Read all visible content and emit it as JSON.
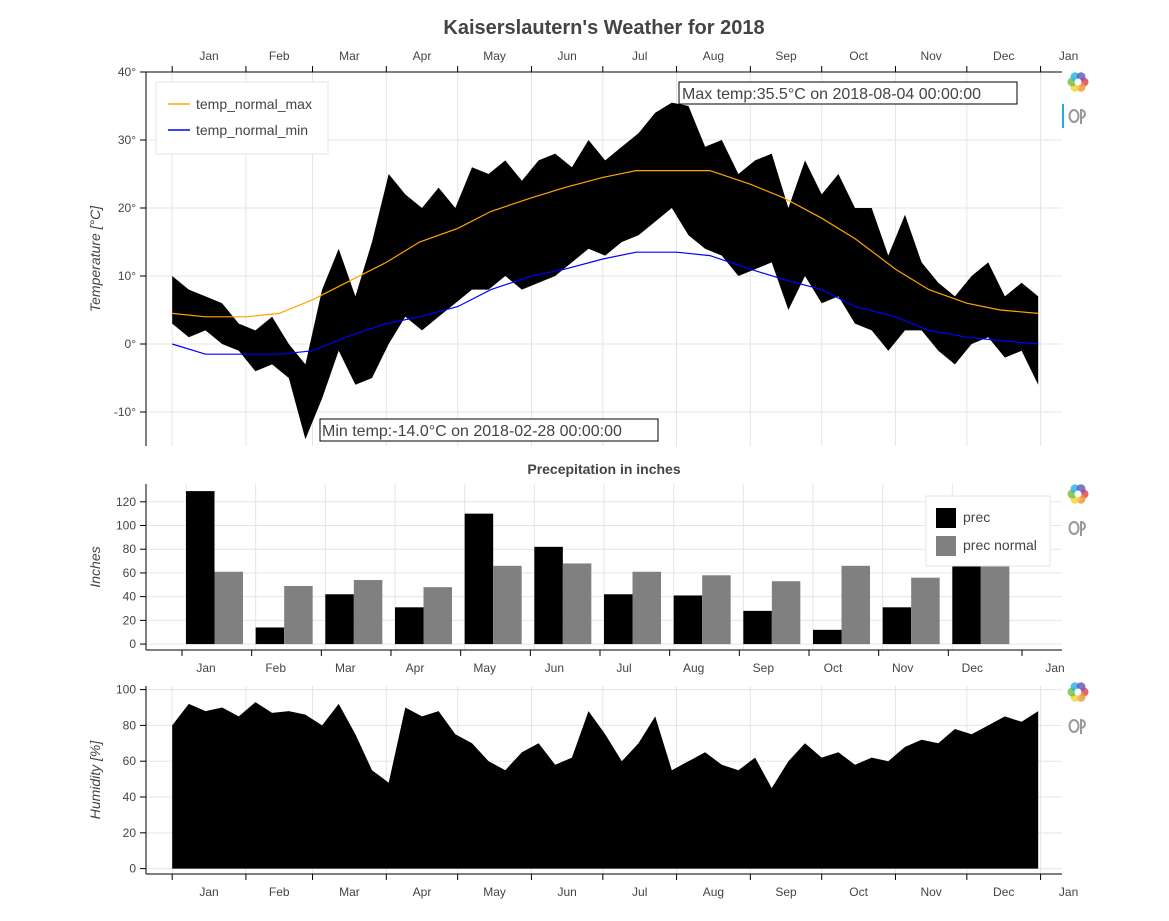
{
  "title": "Kaiserslautern's Weather for 2018",
  "months": [
    "Jan",
    "Feb",
    "Mar",
    "Apr",
    "May",
    "Jun",
    "Jul",
    "Aug",
    "Sep",
    "Oct",
    "Nov",
    "Dec",
    "Jan"
  ],
  "toolbar": {
    "logo_icon": "bokeh-logo-icon",
    "hover_icon": "hover-tool-icon"
  },
  "chart_data": [
    {
      "id": "temperature",
      "type": "line",
      "title": "",
      "ylabel": "Temperature [°C]",
      "ylim": [
        -15,
        40
      ],
      "yticks": [
        "-10°",
        "0°",
        "10°",
        "20°",
        "30°",
        "40°"
      ],
      "x_axis": "date",
      "xlim": [
        "2017-12-21",
        "2019-01-10"
      ],
      "legend": {
        "placement": "top-left",
        "entries": [
          "temp_normal_max",
          "temp_normal_min"
        ]
      },
      "annotations": [
        {
          "text": "Max temp:35.5°C on 2018-08-04 00:00:00",
          "x": "2018-08-04",
          "y": 35.5
        },
        {
          "text": "Min temp:-14.0°C on 2018-02-28 00:00:00",
          "x": "2018-02-28",
          "y": -14.0
        }
      ],
      "band": {
        "name": "daily temperature range",
        "color": "#000000",
        "dates": [
          "2018-01-01",
          "2018-01-08",
          "2018-01-15",
          "2018-01-22",
          "2018-01-29",
          "2018-02-05",
          "2018-02-12",
          "2018-02-19",
          "2018-02-26",
          "2018-03-05",
          "2018-03-12",
          "2018-03-19",
          "2018-03-26",
          "2018-04-02",
          "2018-04-09",
          "2018-04-16",
          "2018-04-23",
          "2018-04-30",
          "2018-05-07",
          "2018-05-14",
          "2018-05-21",
          "2018-05-28",
          "2018-06-04",
          "2018-06-11",
          "2018-06-18",
          "2018-06-25",
          "2018-07-02",
          "2018-07-09",
          "2018-07-16",
          "2018-07-23",
          "2018-07-30",
          "2018-08-06",
          "2018-08-13",
          "2018-08-20",
          "2018-08-27",
          "2018-09-03",
          "2018-09-10",
          "2018-09-17",
          "2018-09-24",
          "2018-10-01",
          "2018-10-08",
          "2018-10-15",
          "2018-10-22",
          "2018-10-29",
          "2018-11-05",
          "2018-11-12",
          "2018-11-19",
          "2018-11-26",
          "2018-12-03",
          "2018-12-10",
          "2018-12-17",
          "2018-12-24",
          "2018-12-31"
        ],
        "max": [
          10,
          8,
          7,
          6,
          3,
          2,
          4,
          0,
          -3,
          8,
          14,
          7,
          15,
          25,
          22,
          20,
          23,
          20,
          26,
          25,
          27,
          24,
          27,
          28,
          26,
          30,
          27,
          29,
          31,
          34,
          35.5,
          35,
          29,
          30,
          25,
          27,
          28,
          20,
          27,
          22,
          25,
          20,
          20,
          13,
          19,
          12,
          9,
          7,
          10,
          12,
          7,
          9,
          7
        ],
        "min": [
          3,
          1,
          2,
          0,
          -1,
          -4,
          -3,
          -5,
          -14,
          -8,
          -1,
          -6,
          -5,
          0,
          4,
          2,
          4,
          6,
          8,
          8,
          10,
          8,
          9,
          10,
          12,
          14,
          13,
          15,
          16,
          18,
          20,
          16,
          14,
          13,
          10,
          11,
          12,
          5,
          10,
          6,
          7,
          3,
          2,
          -1,
          2,
          2,
          -1,
          -3,
          0,
          1,
          -2,
          -1,
          -6
        ]
      },
      "series": [
        {
          "name": "temp_normal_max",
          "color": "#ffa500",
          "dates": [
            "2018-01-01",
            "2018-01-15",
            "2018-02-01",
            "2018-02-15",
            "2018-03-01",
            "2018-03-15",
            "2018-04-01",
            "2018-04-15",
            "2018-05-01",
            "2018-05-15",
            "2018-06-01",
            "2018-06-15",
            "2018-07-01",
            "2018-07-15",
            "2018-08-01",
            "2018-08-15",
            "2018-09-01",
            "2018-09-15",
            "2018-10-01",
            "2018-10-15",
            "2018-11-01",
            "2018-11-15",
            "2018-12-01",
            "2018-12-15",
            "2018-12-31"
          ],
          "values": [
            4.5,
            4.0,
            4.0,
            4.5,
            6.5,
            9.0,
            12.0,
            15.0,
            17.0,
            19.5,
            21.5,
            23.0,
            24.5,
            25.5,
            25.5,
            25.5,
            23.5,
            21.5,
            18.5,
            15.5,
            11.0,
            8.0,
            6.0,
            5.0,
            4.5
          ]
        },
        {
          "name": "temp_normal_min",
          "color": "#0000ff",
          "dates": [
            "2018-01-01",
            "2018-01-15",
            "2018-02-01",
            "2018-02-15",
            "2018-03-01",
            "2018-03-15",
            "2018-04-01",
            "2018-04-15",
            "2018-05-01",
            "2018-05-15",
            "2018-06-01",
            "2018-06-15",
            "2018-07-01",
            "2018-07-15",
            "2018-08-01",
            "2018-08-15",
            "2018-09-01",
            "2018-09-15",
            "2018-10-01",
            "2018-10-15",
            "2018-11-01",
            "2018-11-15",
            "2018-12-01",
            "2018-12-15",
            "2018-12-31"
          ],
          "values": [
            0.0,
            -1.5,
            -1.5,
            -1.5,
            -1.0,
            1.0,
            3.0,
            4.0,
            5.5,
            8.0,
            10.0,
            11.0,
            12.5,
            13.5,
            13.5,
            13.0,
            11.0,
            9.5,
            8.0,
            5.5,
            4.0,
            2.0,
            1.0,
            0.5,
            0.0
          ]
        }
      ]
    },
    {
      "id": "precipitation",
      "type": "bar",
      "title": "Precepitation in inches",
      "ylabel": "Inches",
      "ylim": [
        -5,
        135
      ],
      "yticks": [
        "0",
        "20",
        "40",
        "60",
        "80",
        "100",
        "120"
      ],
      "legend": {
        "placement": "top-right",
        "entries": [
          "prec",
          "prec normal"
        ]
      },
      "categories": [
        "Jan",
        "Feb",
        "Mar",
        "Apr",
        "May",
        "Jun",
        "Jul",
        "Aug",
        "Sep",
        "Oct",
        "Nov",
        "Dec"
      ],
      "series": [
        {
          "name": "prec",
          "color": "#000000",
          "values": [
            129,
            14,
            42,
            31,
            110,
            82,
            42,
            41,
            28,
            12,
            31,
            72
          ]
        },
        {
          "name": "prec normal",
          "color": "#808080",
          "values": [
            61,
            49,
            54,
            48,
            66,
            68,
            61,
            58,
            53,
            66,
            56,
            66
          ]
        }
      ]
    },
    {
      "id": "humidity",
      "type": "area",
      "title": "",
      "ylabel": "Humidity [%]",
      "ylim": [
        -3,
        102
      ],
      "yticks": [
        "0",
        "20",
        "40",
        "60",
        "80",
        "100"
      ],
      "color": "#000000",
      "dates": [
        "2018-01-01",
        "2018-01-08",
        "2018-01-15",
        "2018-01-22",
        "2018-01-29",
        "2018-02-05",
        "2018-02-12",
        "2018-02-19",
        "2018-02-26",
        "2018-03-05",
        "2018-03-12",
        "2018-03-19",
        "2018-03-26",
        "2018-04-02",
        "2018-04-09",
        "2018-04-16",
        "2018-04-23",
        "2018-04-30",
        "2018-05-07",
        "2018-05-14",
        "2018-05-21",
        "2018-05-28",
        "2018-06-04",
        "2018-06-11",
        "2018-06-18",
        "2018-06-25",
        "2018-07-02",
        "2018-07-09",
        "2018-07-16",
        "2018-07-23",
        "2018-07-30",
        "2018-08-06",
        "2018-08-13",
        "2018-08-20",
        "2018-08-27",
        "2018-09-03",
        "2018-09-10",
        "2018-09-17",
        "2018-09-24",
        "2018-10-01",
        "2018-10-08",
        "2018-10-15",
        "2018-10-22",
        "2018-10-29",
        "2018-11-05",
        "2018-11-12",
        "2018-11-19",
        "2018-11-26",
        "2018-12-03",
        "2018-12-10",
        "2018-12-17",
        "2018-12-24",
        "2018-12-31"
      ],
      "values": [
        80,
        92,
        88,
        90,
        85,
        93,
        87,
        88,
        86,
        80,
        92,
        75,
        55,
        48,
        90,
        85,
        88,
        75,
        70,
        60,
        55,
        65,
        70,
        58,
        62,
        88,
        75,
        60,
        70,
        85,
        55,
        60,
        65,
        58,
        55,
        62,
        45,
        60,
        70,
        62,
        65,
        58,
        62,
        60,
        68,
        72,
        70,
        78,
        75,
        80,
        85,
        82,
        88
      ]
    }
  ]
}
